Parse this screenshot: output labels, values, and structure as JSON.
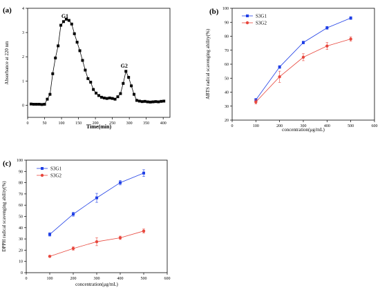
{
  "chart_data": [
    {
      "panel": "(a)",
      "type": "line",
      "xlabel": "Time(min)",
      "ylabel": "Absorbance at 220 nm",
      "xlim": [
        0,
        420
      ],
      "ylim": [
        -0.5,
        4
      ],
      "xticks": [
        0,
        50,
        100,
        150,
        200,
        250,
        300,
        350,
        400
      ],
      "yticks": [
        0,
        1,
        2,
        3,
        4
      ],
      "annotations": [
        {
          "text": "G1",
          "x": 110,
          "y": 3.6
        },
        {
          "text": "G2",
          "x": 285,
          "y": 1.55
        }
      ],
      "series": [
        {
          "color": "#000000",
          "marker": "square",
          "x": [
            10,
            18,
            26,
            34,
            42,
            50,
            58,
            66,
            74,
            82,
            90,
            98,
            106,
            114,
            122,
            130,
            138,
            146,
            154,
            162,
            170,
            178,
            186,
            194,
            202,
            210,
            218,
            226,
            234,
            242,
            250,
            258,
            266,
            274,
            282,
            290,
            298,
            306,
            314,
            322,
            330,
            338,
            346,
            354,
            362,
            370,
            378,
            386,
            394,
            402
          ],
          "y": [
            0.05,
            0.04,
            0.04,
            0.04,
            0.03,
            0.04,
            0.25,
            0.45,
            1.3,
            1.95,
            2.45,
            3.3,
            3.45,
            3.55,
            3.5,
            3.35,
            2.95,
            2.6,
            2.25,
            1.85,
            1.45,
            1.1,
            0.95,
            0.65,
            0.5,
            0.4,
            0.33,
            0.3,
            0.28,
            0.3,
            0.28,
            0.25,
            0.35,
            0.48,
            0.9,
            1.4,
            1.15,
            0.8,
            0.45,
            0.2,
            0.17,
            0.15,
            0.16,
            0.14,
            0.13,
            0.14,
            0.15,
            0.14,
            0.16,
            0.17
          ]
        }
      ]
    },
    {
      "panel": "(b)",
      "type": "line",
      "xlabel": "concentration(μg/mL)",
      "ylabel": "ABTS radical scavenging ability(%)",
      "xlim": [
        0,
        600
      ],
      "ylim": [
        20,
        100
      ],
      "xticks": [
        0,
        100,
        200,
        300,
        400,
        500,
        600
      ],
      "yticks": [
        20,
        30,
        40,
        50,
        60,
        70,
        80,
        90,
        100
      ],
      "legend": "top-left",
      "categories": [
        100,
        200,
        300,
        400,
        500
      ],
      "series": [
        {
          "name": "S3G1",
          "color": "#1f3fe6",
          "marker": "square",
          "values": [
            34.5,
            58.0,
            75.5,
            86.0,
            93.0
          ],
          "errors": [
            1.0,
            1.0,
            1.0,
            1.0,
            1.0
          ]
        },
        {
          "name": "S3G2",
          "color": "#e8473d",
          "marker": "circle",
          "values": [
            33.0,
            51.0,
            65.0,
            73.0,
            78.0
          ],
          "errors": [
            1.5,
            4.0,
            2.5,
            2.5,
            1.5
          ]
        }
      ]
    },
    {
      "panel": "(c)",
      "type": "line",
      "xlabel": "concentration(μg/mL)",
      "ylabel": "DPPH radical scavenging ability(%)",
      "xlim": [
        0,
        600
      ],
      "ylim": [
        0,
        100
      ],
      "xticks": [
        0,
        100,
        200,
        300,
        400,
        500,
        600
      ],
      "yticks": [
        0,
        10,
        20,
        30,
        40,
        50,
        60,
        70,
        80,
        90,
        100
      ],
      "legend": "top-left",
      "categories": [
        100,
        200,
        300,
        400,
        500
      ],
      "series": [
        {
          "name": "S3G1",
          "color": "#1f3fe6",
          "marker": "square",
          "values": [
            34.0,
            52.0,
            66.5,
            80.0,
            88.5
          ],
          "errors": [
            1.5,
            1.8,
            4.0,
            2.0,
            3.0
          ]
        },
        {
          "name": "S3G2",
          "color": "#e8473d",
          "marker": "circle",
          "values": [
            14.5,
            21.5,
            27.5,
            31.0,
            37.0
          ],
          "errors": [
            0.8,
            1.5,
            3.5,
            1.5,
            1.8
          ]
        }
      ]
    }
  ]
}
